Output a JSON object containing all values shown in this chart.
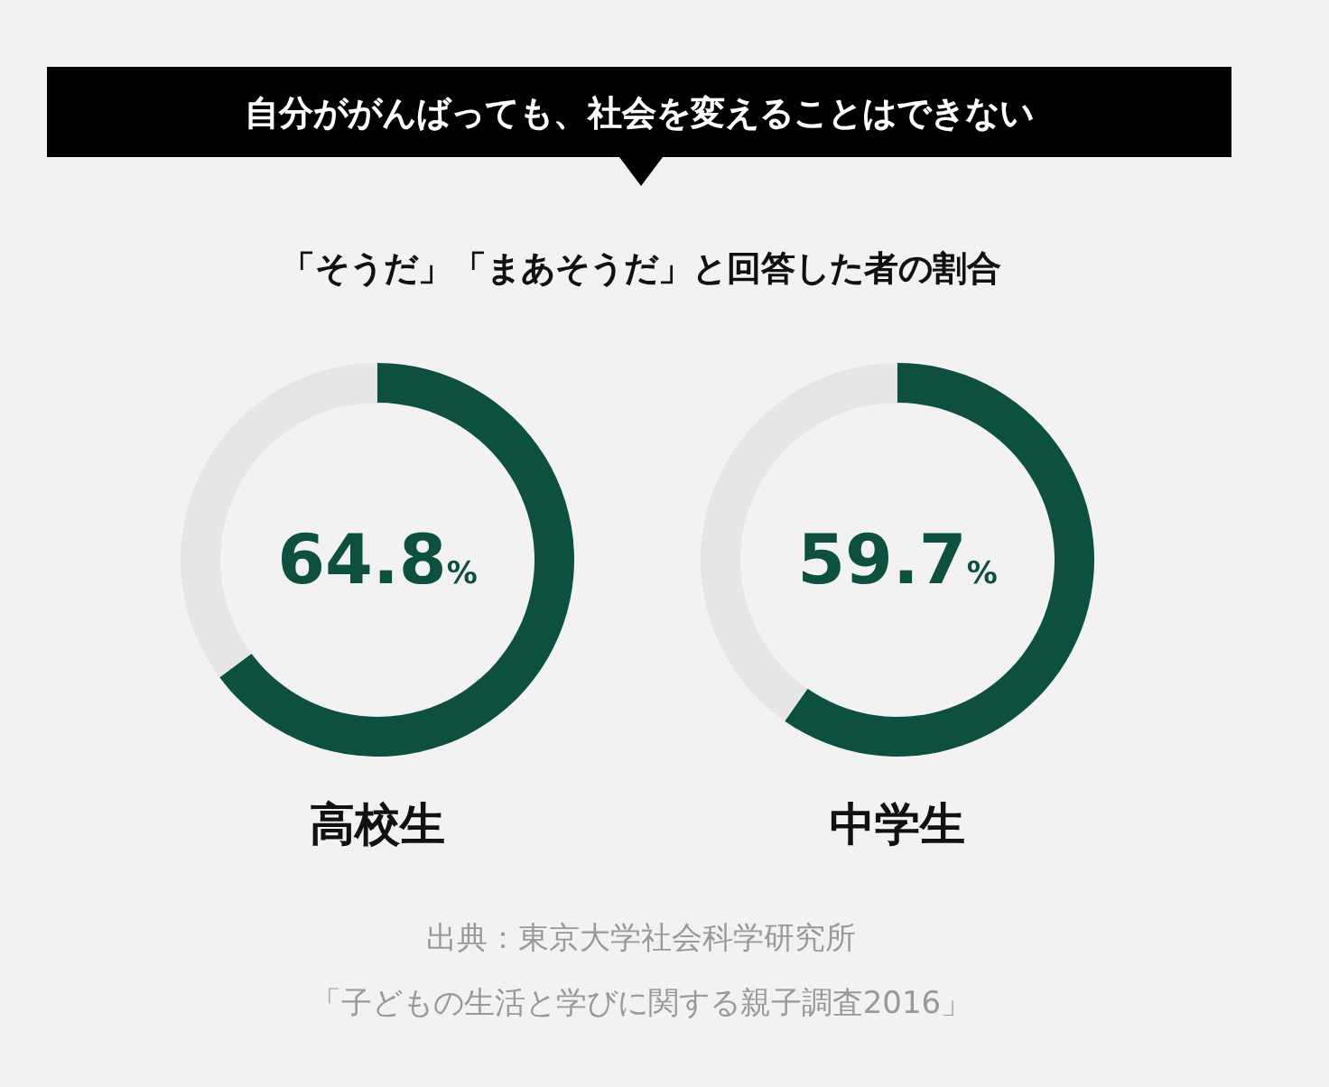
{
  "chart_data": [
    {
      "type": "other",
      "title": "自分ががんばっても、社会を変えることはできない",
      "subtitle": "「そうだ」「まあそうだ」と回答した者の割合",
      "annotations": [
        "出典：東京大学社会科学研究所",
        "「子どもの生活と学びに関する親子調査2016」"
      ]
    },
    {
      "type": "donut",
      "title": "高校生",
      "categories": [
        null,
        null
      ],
      "values": [
        64.8,
        35.2
      ],
      "colors": [
        "#0d5040",
        "#e6e6e6"
      ],
      "annotations": [
        "64.8%"
      ]
    },
    {
      "type": "donut",
      "title": "中学生",
      "categories": [
        null,
        null
      ],
      "values": [
        59.7,
        40.3
      ],
      "colors": [
        "#0d5040",
        "#e6e6e6"
      ],
      "annotations": [
        "59.7%"
      ]
    }
  ]
}
